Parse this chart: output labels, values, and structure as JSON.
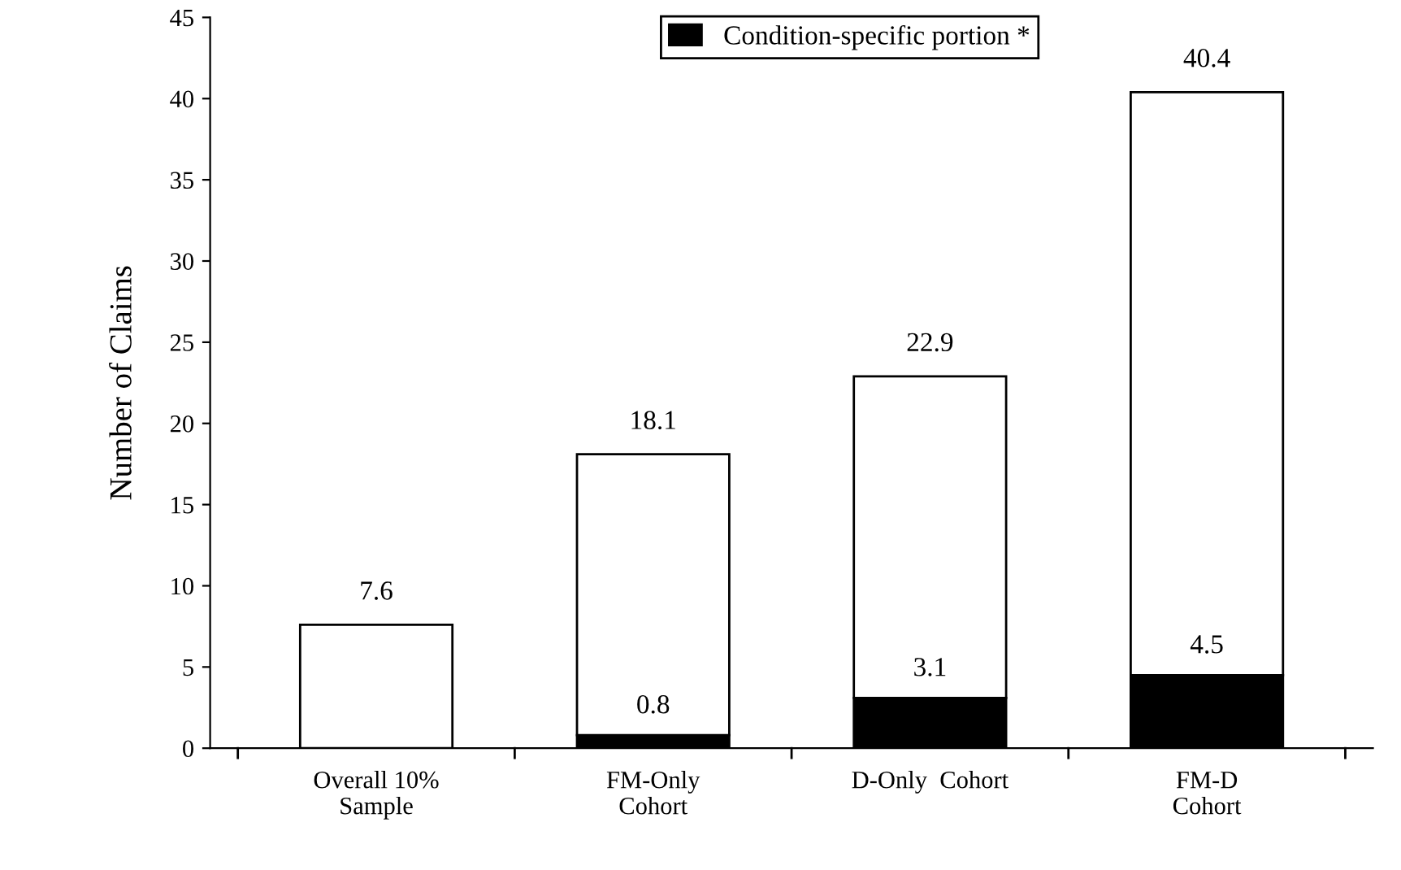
{
  "chart_data": {
    "type": "bar",
    "stacked": true,
    "ylabel": "Number of Claims",
    "categories": [
      "Overall 10%\nSample",
      "FM-Only\nCohort",
      "D-Only  Cohort",
      "FM-D\nCohort"
    ],
    "series": [
      {
        "name": "Condition-specific portion *",
        "color": "#000000",
        "values": [
          0,
          0.8,
          3.1,
          4.5
        ],
        "value_labels": [
          null,
          "0.8",
          "3.1",
          "4.5"
        ]
      },
      {
        "color": "#ffffff",
        "values": [
          7.6,
          17.3,
          19.8,
          35.9
        ]
      }
    ],
    "totals": [
      "7.6",
      "18.1",
      "22.9",
      "40.4"
    ],
    "ylim": [
      0,
      45
    ],
    "yticks": [
      0,
      5,
      10,
      15,
      20,
      25,
      30,
      35,
      40,
      45
    ],
    "grid": false,
    "legend": "top"
  }
}
